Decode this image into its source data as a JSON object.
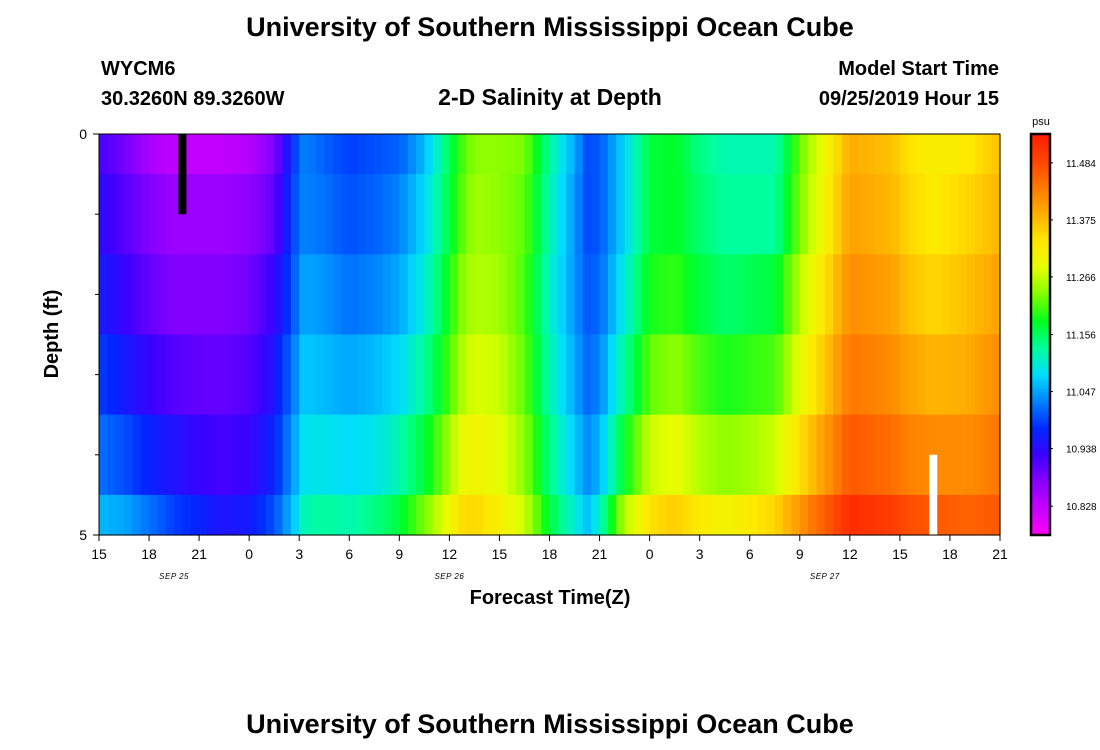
{
  "page": {
    "title_top": "University of Southern Mississippi Ocean Cube",
    "title_bottom": "University of Southern Mississippi Ocean Cube",
    "station_id": "WYCM6",
    "station_coords": "30.3260N 89.3260W",
    "plot_title": "2-D Salinity at Depth",
    "model_start_label": "Model Start Time",
    "model_start_value": "09/25/2019 Hour 15"
  },
  "colors": {
    "background": "#ffffff",
    "axis": "#000000",
    "markers": [
      "#000000",
      "#ffffff"
    ]
  },
  "chart_data": {
    "type": "heatmap",
    "title": "2-D Salinity at Depth",
    "xlabel": "Forecast Time(Z)",
    "ylabel": "Depth (ft)",
    "x_hours_range": [
      0,
      54
    ],
    "y_range": [
      0,
      5
    ],
    "y_tick_labels": [
      {
        "value": 0,
        "label": "0"
      },
      {
        "value": 5,
        "label": "5"
      }
    ],
    "y_minor_ticks": [
      1,
      2,
      3,
      4
    ],
    "x_tick_labels": [
      "15",
      "18",
      "21",
      "0",
      "3",
      "6",
      "9",
      "12",
      "15",
      "18",
      "21",
      "0",
      "3",
      "6",
      "9",
      "12",
      "15",
      "18",
      "21"
    ],
    "date_labels": [
      {
        "label": "SEP 25",
        "hour": 4.5
      },
      {
        "label": "SEP 26",
        "hour": 21
      },
      {
        "label": "SEP 27",
        "hour": 43.5
      }
    ],
    "depth_bands": [
      {
        "from": 0,
        "to": 0.5
      },
      {
        "from": 0.5,
        "to": 1.5
      },
      {
        "from": 1.5,
        "to": 2.5
      },
      {
        "from": 2.5,
        "to": 3.5
      },
      {
        "from": 3.5,
        "to": 4.5
      },
      {
        "from": 4.5,
        "to": 5
      }
    ],
    "colorbar": {
      "unit": "psu",
      "min": 10.773,
      "max": 11.539,
      "labels": [
        "11.484",
        "11.375",
        "11.266",
        "11.156",
        "11.047",
        "10.938",
        "10.828"
      ],
      "colors": [
        "#ff00ff",
        "#c800ff",
        "#8a00ff",
        "#3c00ff",
        "#0028ff",
        "#0080ff",
        "#00dcff",
        "#00ff9c",
        "#00ff20",
        "#80ff00",
        "#e4ff00",
        "#ffe800",
        "#ffb000",
        "#ff7a00",
        "#ff4600",
        "#ff1e00"
      ]
    },
    "time_nodes_hours": [
      0,
      1.5,
      3,
      4.5,
      6,
      7.5,
      9,
      10.5,
      11.7,
      12.3,
      13.5,
      15,
      16.5,
      18,
      19.5,
      21,
      21.6,
      22.5,
      24,
      25.5,
      27,
      28.5,
      29.4,
      30.3,
      31.5,
      33,
      34.5,
      36,
      37.5,
      39,
      40.5,
      42,
      45,
      47.5,
      48.5,
      50,
      52,
      54
    ],
    "salinity_psu": [
      [
        10.92,
        10.89,
        10.85,
        10.83,
        10.83,
        10.83,
        10.84,
        10.88,
        10.99,
        11.03,
        11.01,
        10.99,
        11.0,
        11.01,
        11.06,
        11.16,
        11.2,
        11.24,
        11.24,
        11.23,
        11.13,
        11.05,
        10.99,
        11.02,
        11.08,
        11.17,
        11.18,
        11.14,
        11.12,
        11.12,
        11.12,
        11.22,
        11.39,
        11.37,
        11.34,
        11.32,
        11.33,
        11.37
      ],
      [
        10.94,
        10.91,
        10.88,
        10.86,
        10.86,
        10.86,
        10.87,
        10.9,
        11.0,
        11.03,
        11.02,
        11.0,
        11.01,
        11.03,
        11.08,
        11.17,
        11.21,
        11.25,
        11.24,
        11.22,
        11.12,
        11.04,
        10.99,
        11.02,
        11.08,
        11.17,
        11.18,
        11.15,
        11.13,
        11.13,
        11.13,
        11.23,
        11.4,
        11.38,
        11.35,
        11.33,
        11.35,
        11.38
      ],
      [
        10.96,
        10.93,
        10.9,
        10.88,
        10.88,
        10.88,
        10.89,
        10.93,
        11.01,
        11.05,
        11.04,
        11.02,
        11.03,
        11.05,
        11.1,
        11.19,
        11.23,
        11.26,
        11.25,
        11.21,
        11.11,
        11.04,
        11.0,
        11.03,
        11.1,
        11.19,
        11.2,
        11.17,
        11.15,
        11.16,
        11.17,
        11.26,
        11.42,
        11.4,
        11.37,
        11.35,
        11.37,
        11.4
      ],
      [
        10.99,
        10.96,
        10.93,
        10.91,
        10.9,
        10.9,
        10.91,
        10.95,
        11.03,
        11.07,
        11.06,
        11.05,
        11.06,
        11.08,
        11.13,
        11.21,
        11.25,
        11.28,
        11.27,
        11.22,
        11.12,
        11.05,
        11.01,
        11.05,
        11.13,
        11.22,
        11.24,
        11.21,
        11.19,
        11.2,
        11.21,
        11.29,
        11.44,
        11.42,
        11.4,
        11.38,
        11.39,
        11.42
      ],
      [
        11.02,
        11.0,
        10.97,
        10.95,
        10.93,
        10.92,
        10.93,
        10.97,
        11.05,
        11.09,
        11.09,
        11.08,
        11.09,
        11.12,
        11.17,
        11.25,
        11.29,
        11.31,
        11.29,
        11.24,
        11.14,
        11.07,
        11.03,
        11.08,
        11.18,
        11.27,
        11.29,
        11.26,
        11.24,
        11.25,
        11.27,
        11.34,
        11.47,
        11.45,
        11.43,
        11.42,
        11.42,
        11.44
      ],
      [
        11.06,
        11.05,
        11.02,
        10.99,
        10.97,
        10.95,
        10.96,
        11.0,
        11.07,
        11.12,
        11.13,
        11.12,
        11.14,
        11.17,
        11.23,
        11.3,
        11.34,
        11.35,
        11.32,
        11.27,
        11.17,
        11.1,
        11.06,
        11.14,
        11.26,
        11.34,
        11.36,
        11.33,
        11.31,
        11.33,
        11.35,
        11.41,
        11.52,
        11.5,
        11.48,
        11.47,
        11.46,
        11.47
      ]
    ],
    "markers": [
      {
        "hour": 5,
        "depth_from": 0,
        "depth_to": 1,
        "color": "#000000"
      },
      {
        "hour": 50,
        "depth_from": 4,
        "depth_to": 5,
        "color": "#ffffff"
      }
    ]
  }
}
